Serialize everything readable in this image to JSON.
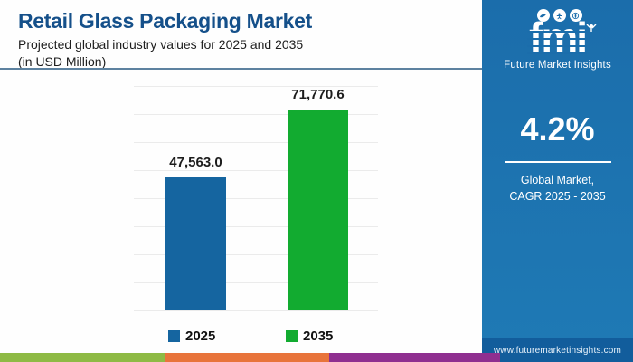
{
  "header": {
    "title": "Retail Glass Packaging Market",
    "subtitle": "Projected global industry values for 2025 and 2035",
    "unit_note": "(in USD Million)"
  },
  "chart_data": {
    "type": "bar",
    "title": "Retail Glass Packaging Market",
    "categories": [
      "2025",
      "2035"
    ],
    "values": [
      47563.0,
      71770.6
    ],
    "value_labels": [
      "47,563.0",
      "71,770.6"
    ],
    "bar_colors": [
      "#1565a0",
      "#12ab30"
    ],
    "xlabel": "",
    "ylabel": "",
    "ylim": [
      0,
      80000
    ],
    "gridline_count": 9,
    "grid": true,
    "legend_position": "bottom"
  },
  "legend": [
    {
      "label": "2025",
      "color": "#1565a0"
    },
    {
      "label": "2035",
      "color": "#12ab30"
    }
  ],
  "sidebar": {
    "logo_text": "fmi",
    "logo_caption": "Future Market Insights",
    "logo_icons": [
      "bird-icon",
      "person-star-icon",
      "globe-pin-icon",
      "cheering-person-icon"
    ],
    "cagr_value": "4.2%",
    "cagr_caption_line1": "Global Market,",
    "cagr_caption_line2": "CAGR 2025 - 2035",
    "website": "www.futuremarketinsights.com",
    "bg_color_top": "#1b6dab",
    "bg_color_bottom": "#1f7ab5",
    "website_bar_color": "#125d9c"
  },
  "footer_strip": {
    "colors": [
      "#8eba45",
      "#e8743b",
      "#8f2f90"
    ]
  },
  "colors": {
    "title_blue": "#15508a",
    "divider": "#5d82a0",
    "gridline": "#ebebeb"
  }
}
